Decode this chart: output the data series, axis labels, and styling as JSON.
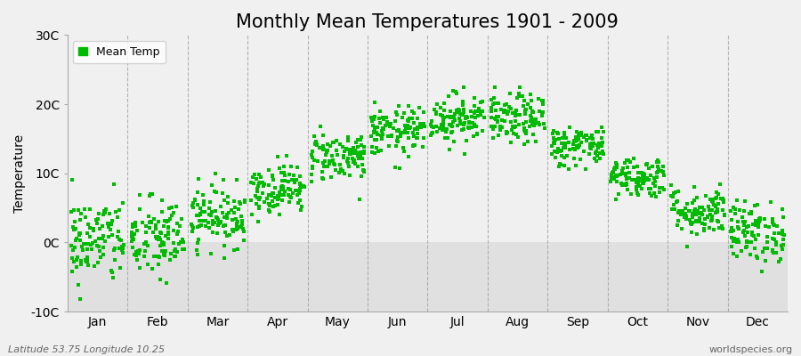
{
  "title": "Monthly Mean Temperatures 1901 - 2009",
  "ylabel": "Temperature",
  "xlabel": "",
  "ylim": [
    -10,
    30
  ],
  "yticks": [
    -10,
    0,
    10,
    20,
    30
  ],
  "ytick_labels": [
    "-10C",
    "0C",
    "10C",
    "20C",
    "30C"
  ],
  "months": [
    "Jan",
    "Feb",
    "Mar",
    "Apr",
    "May",
    "Jun",
    "Jul",
    "Aug",
    "Sep",
    "Oct",
    "Nov",
    "Dec"
  ],
  "month_means": [
    0.3,
    0.5,
    3.8,
    7.8,
    12.5,
    16.0,
    18.0,
    17.8,
    14.0,
    9.5,
    4.5,
    1.5
  ],
  "month_stds": [
    3.2,
    3.0,
    2.2,
    1.8,
    1.8,
    1.8,
    1.8,
    1.8,
    1.5,
    1.5,
    1.8,
    2.2
  ],
  "n_years": 109,
  "dot_color": "#00bb00",
  "dot_size": 6,
  "bg_light": "#f0f0f0",
  "bg_dark": "#e0e0e0",
  "grid_color": "#999999",
  "title_fontsize": 15,
  "axis_fontsize": 10,
  "legend_label": "Mean Temp",
  "footer_left": "Latitude 53.75 Longitude 10.25",
  "footer_right": "worldspecies.org",
  "footer_fontsize": 8
}
